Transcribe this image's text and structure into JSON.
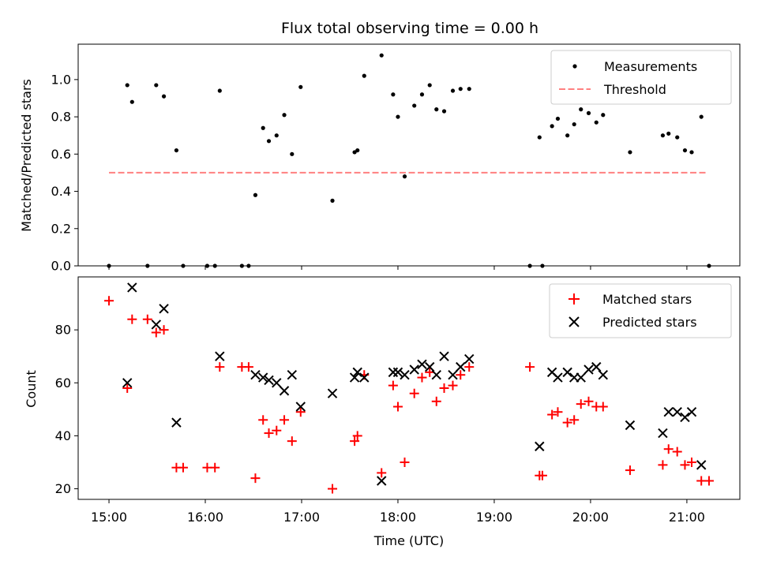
{
  "chart_data": [
    {
      "type": "scatter",
      "title": "Flux total observing time = 0.00 h",
      "ylabel": "Matched/Predicted stars",
      "xlabel": "",
      "xlim": [
        14.68,
        21.55
      ],
      "ylim": [
        0,
        1.19
      ],
      "yticks": [
        0.0,
        0.2,
        0.4,
        0.6,
        0.8,
        1.0
      ],
      "ytick_labels": [
        "0.0",
        "0.2",
        "0.4",
        "0.6",
        "0.8",
        "1.0"
      ],
      "legend": [
        "Measurements",
        "Threshold"
      ],
      "legend_position": "upper right",
      "threshold": {
        "name": "Threshold",
        "value": 0.5,
        "x_range": [
          15.0,
          21.2
        ],
        "color": "#ff8080"
      },
      "series": [
        {
          "name": "Measurements",
          "marker": "dot",
          "color": "#000000",
          "x": [
            15.0,
            15.19,
            15.24,
            15.4,
            15.49,
            15.57,
            15.7,
            15.77,
            16.02,
            16.1,
            16.15,
            16.38,
            16.45,
            16.52,
            16.6,
            16.66,
            16.74,
            16.82,
            16.9,
            16.99,
            17.32,
            17.55,
            17.58,
            17.65,
            17.83,
            17.95,
            18.0,
            18.07,
            18.17,
            18.25,
            18.33,
            18.4,
            18.48,
            18.57,
            18.65,
            18.74,
            19.37,
            19.47,
            19.5,
            19.6,
            19.66,
            19.76,
            19.83,
            19.9,
            19.98,
            20.06,
            20.13,
            20.41,
            20.75,
            20.81,
            20.9,
            20.98,
            21.05,
            21.15,
            21.23
          ],
          "y": [
            0.0,
            0.97,
            0.88,
            0.0,
            0.97,
            0.91,
            0.62,
            0.0,
            0.0,
            0.0,
            0.94,
            0.0,
            0.0,
            0.38,
            0.74,
            0.67,
            0.7,
            0.81,
            0.6,
            0.96,
            0.35,
            0.61,
            0.62,
            1.02,
            1.13,
            0.92,
            0.8,
            0.48,
            0.86,
            0.92,
            0.97,
            0.84,
            0.83,
            0.94,
            0.95,
            0.95,
            0.0,
            0.69,
            0.0,
            0.75,
            0.79,
            0.7,
            0.76,
            0.84,
            0.82,
            0.77,
            0.81,
            0.61,
            0.7,
            0.71,
            0.69,
            0.62,
            0.61,
            0.8,
            0.0
          ]
        }
      ]
    },
    {
      "type": "scatter",
      "title": "",
      "ylabel": "Count",
      "xlabel": "Time (UTC)",
      "xlim": [
        14.68,
        21.55
      ],
      "ylim": [
        16,
        100
      ],
      "yticks": [
        20,
        40,
        60,
        80
      ],
      "ytick_labels": [
        "20",
        "40",
        "60",
        "80"
      ],
      "xticks": [
        15,
        16,
        17,
        18,
        19,
        20,
        21
      ],
      "xtick_labels": [
        "15:00",
        "16:00",
        "17:00",
        "18:00",
        "19:00",
        "20:00",
        "21:00"
      ],
      "legend": [
        "Matched stars",
        "Predicted stars"
      ],
      "legend_position": "upper right",
      "series": [
        {
          "name": "Matched stars",
          "marker": "plus",
          "color": "#ff0000",
          "x": [
            15.0,
            15.19,
            15.24,
            15.4,
            15.49,
            15.57,
            15.7,
            15.77,
            16.02,
            16.1,
            16.15,
            16.38,
            16.45,
            16.52,
            16.6,
            16.66,
            16.74,
            16.82,
            16.9,
            16.99,
            17.32,
            17.55,
            17.58,
            17.65,
            17.83,
            17.95,
            18.0,
            18.07,
            18.17,
            18.25,
            18.33,
            18.4,
            18.48,
            18.57,
            18.65,
            18.74,
            19.37,
            19.47,
            19.5,
            19.6,
            19.66,
            19.76,
            19.83,
            19.9,
            19.98,
            20.06,
            20.13,
            20.41,
            20.75,
            20.81,
            20.9,
            20.98,
            21.05,
            21.15,
            21.23
          ],
          "y": [
            91,
            58,
            84,
            84,
            79,
            80,
            28,
            28,
            28,
            28,
            66,
            66,
            66,
            24,
            46,
            41,
            42,
            46,
            38,
            49,
            20,
            38,
            40,
            63,
            26,
            59,
            51,
            30,
            56,
            62,
            64,
            53,
            58,
            59,
            63,
            66,
            66,
            25,
            25,
            48,
            49,
            45,
            46,
            52,
            53,
            51,
            51,
            27,
            29,
            35,
            34,
            29,
            30,
            23,
            23
          ]
        },
        {
          "name": "Predicted stars",
          "marker": "x",
          "color": "#000000",
          "x": [
            15.19,
            15.24,
            15.49,
            15.57,
            15.7,
            16.15,
            16.52,
            16.6,
            16.66,
            16.74,
            16.82,
            16.9,
            16.99,
            17.32,
            17.55,
            17.58,
            17.65,
            17.83,
            17.95,
            18.0,
            18.07,
            18.17,
            18.25,
            18.33,
            18.4,
            18.48,
            18.57,
            18.65,
            18.74,
            19.47,
            19.6,
            19.66,
            19.76,
            19.83,
            19.9,
            19.98,
            20.06,
            20.13,
            20.41,
            20.75,
            20.81,
            20.9,
            20.98,
            21.05,
            21.15
          ],
          "y": [
            60,
            96,
            82,
            88,
            45,
            70,
            63,
            62,
            61,
            60,
            57,
            63,
            51,
            56,
            62,
            64,
            62,
            23,
            64,
            64,
            63,
            65,
            67,
            66,
            63,
            70,
            63,
            66,
            69,
            36,
            64,
            62,
            64,
            62,
            62,
            65,
            66,
            63,
            44,
            41,
            49,
            49,
            47,
            49,
            29
          ]
        }
      ]
    }
  ]
}
